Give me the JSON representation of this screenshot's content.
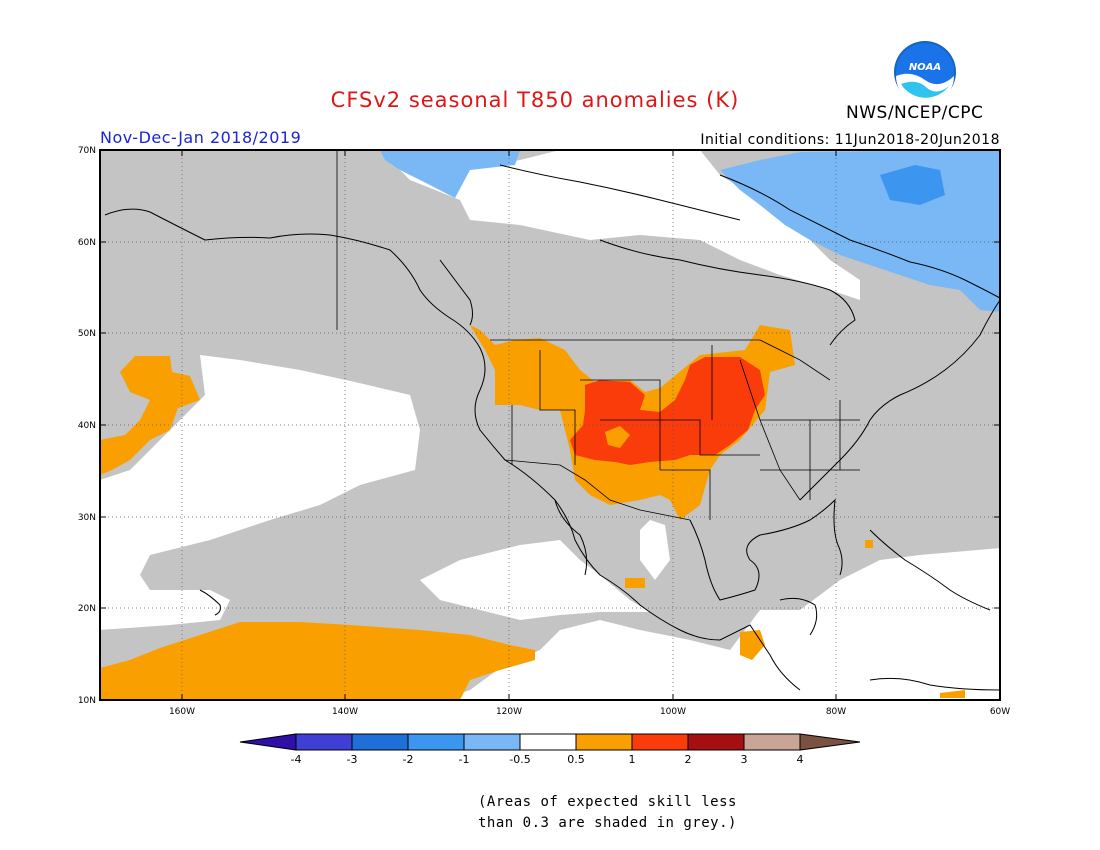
{
  "title": "CFSv2 seasonal T850 anomalies (K)",
  "agency": "NWS/NCEP/CPC",
  "logo_text": "NOAA",
  "season": "Nov-Dec-Jan 2018/2019",
  "initial_conditions": "Initial conditions: 11Jun2018-20Jun2018",
  "footnote_line1": "(Areas of expected skill less",
  "footnote_line2": "than 0.3 are shaded in grey.)",
  "map": {
    "lat_labels": [
      "70N",
      "60N",
      "50N",
      "40N",
      "30N",
      "20N",
      "10N"
    ],
    "lon_labels": [
      "160W",
      "140W",
      "120W",
      "100W",
      "80W",
      "60W"
    ],
    "lat_range": [
      10,
      70
    ],
    "lon_range": [
      -170,
      -60
    ]
  },
  "colorbar": {
    "labels": [
      "-4",
      "-3",
      "-2",
      "-1",
      "-0.5",
      "0.5",
      "1",
      "2",
      "3",
      "4"
    ],
    "colors": [
      "#2e0fa8",
      "#3f3fd6",
      "#1f6fd9",
      "#3c96ef",
      "#7ab8f5",
      "#ffffff",
      "#f9a000",
      "#fa3c0a",
      "#a50f0f",
      "#c8a596",
      "#7a5241"
    ]
  },
  "colors": {
    "grey_low_skill": "#c4c4c4",
    "title_red": "#e01515",
    "season_blue": "#1a24d8"
  }
}
